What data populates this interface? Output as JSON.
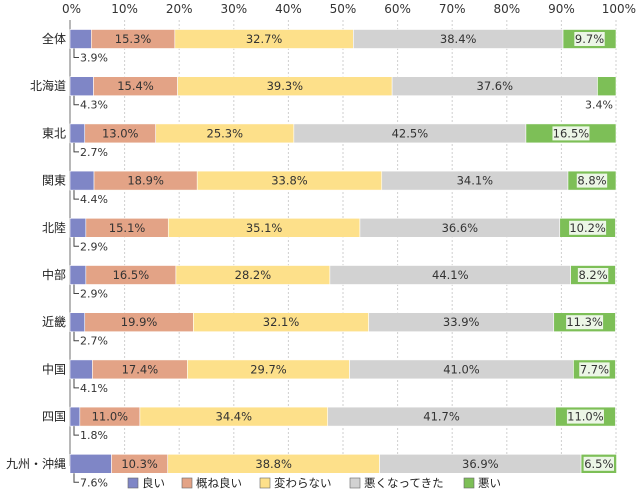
{
  "chart_data": {
    "type": "bar",
    "orientation": "horizontal",
    "stacked": true,
    "percent": true,
    "title": "",
    "xlabel": "",
    "ylabel": "",
    "xlim": [
      0,
      100
    ],
    "x_ticks": [
      "0%",
      "10%",
      "20%",
      "30%",
      "40%",
      "50%",
      "60%",
      "70%",
      "80%",
      "90%",
      "100%"
    ],
    "grid": true,
    "legend_position": "bottom",
    "categories": [
      "全体",
      "北海道",
      "東北",
      "関東",
      "北陸",
      "中部",
      "近畿",
      "中国",
      "四国",
      "九州・沖縄"
    ],
    "series": [
      {
        "name": "良い",
        "color": "#7f86c6",
        "values": [
          3.9,
          4.3,
          2.7,
          4.4,
          2.9,
          2.9,
          2.7,
          4.1,
          1.8,
          7.6
        ],
        "labels": [
          "3.9%",
          "4.3%",
          "2.7%",
          "4.4%",
          "2.9%",
          "2.9%",
          "2.7%",
          "4.1%",
          "1.8%",
          "7.6%"
        ]
      },
      {
        "name": "概ね良い",
        "color": "#e3a386",
        "values": [
          15.3,
          15.4,
          13.0,
          18.9,
          15.1,
          16.5,
          19.9,
          17.4,
          11.0,
          10.3
        ],
        "labels": [
          "15.3%",
          "15.4%",
          "13.0%",
          "18.9%",
          "15.1%",
          "16.5%",
          "19.9%",
          "17.4%",
          "11.0%",
          "10.3%"
        ]
      },
      {
        "name": "変わらない",
        "color": "#fde08a",
        "values": [
          32.7,
          39.3,
          25.3,
          33.8,
          35.1,
          28.2,
          32.1,
          29.7,
          34.4,
          38.8
        ],
        "labels": [
          "32.7%",
          "39.3%",
          "25.3%",
          "33.8%",
          "35.1%",
          "28.2%",
          "32.1%",
          "29.7%",
          "34.4%",
          "38.8%"
        ]
      },
      {
        "name": "悪くなってきた",
        "color": "#d2d2d2",
        "values": [
          38.4,
          37.6,
          42.5,
          34.1,
          36.6,
          44.1,
          33.9,
          41.0,
          41.7,
          36.9
        ],
        "labels": [
          "38.4%",
          "37.6%",
          "42.5%",
          "34.1%",
          "36.6%",
          "44.1%",
          "33.9%",
          "41.0%",
          "41.7%",
          "36.9%"
        ]
      },
      {
        "name": "悪い",
        "color": "#7dbf57",
        "values": [
          9.7,
          3.4,
          16.5,
          8.8,
          10.2,
          8.2,
          11.3,
          7.7,
          11.0,
          6.5
        ],
        "labels": [
          "9.7%",
          "3.4%",
          "16.5%",
          "8.8%",
          "10.2%",
          "8.2%",
          "11.3%",
          "7.7%",
          "11.0%",
          "6.5%"
        ]
      }
    ]
  }
}
